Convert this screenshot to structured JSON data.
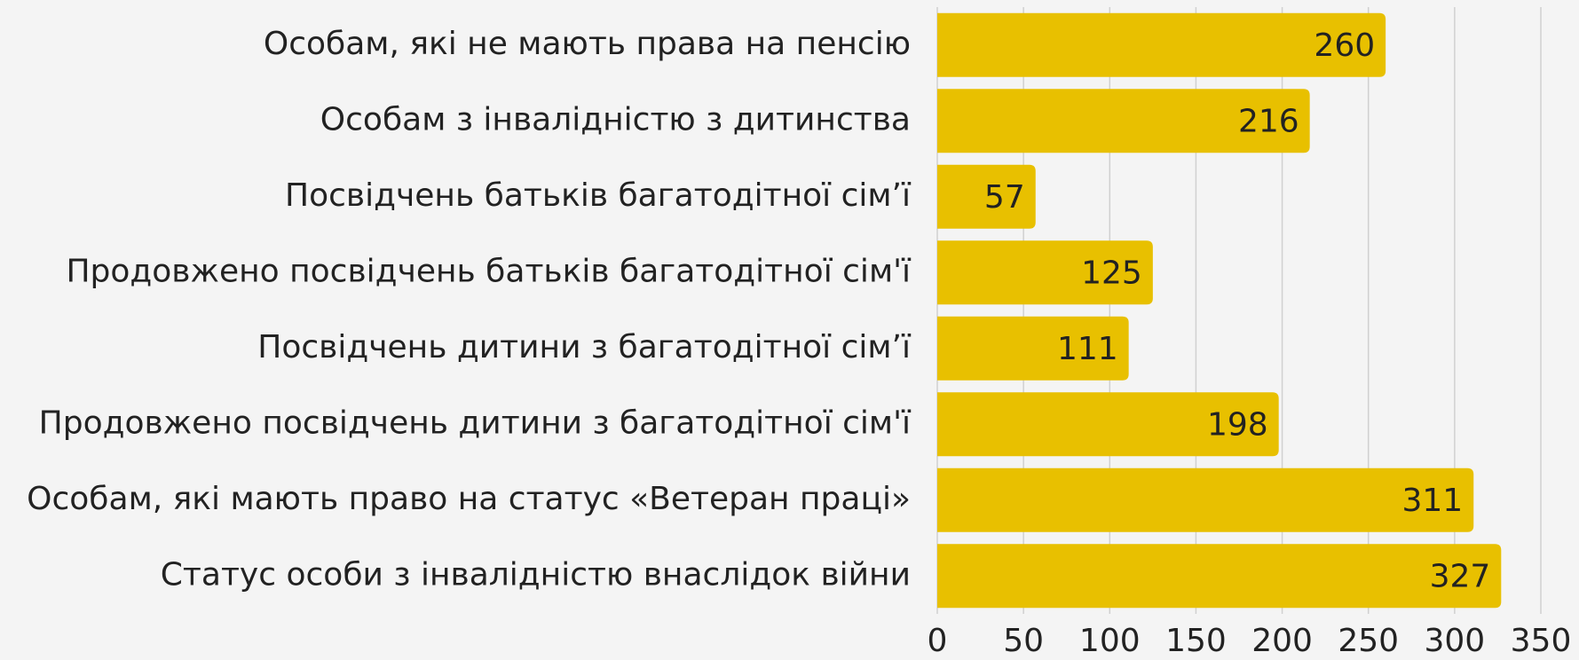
{
  "chart_data": {
    "type": "bar",
    "orientation": "horizontal",
    "categories": [
      "Особам, які не мають права на пенсію",
      "Особам з інвалідністю з дитинства",
      "Посвідчень батьків багатодітної сім’ї",
      "Продовжено посвідчень батьків багатодітної сім'ї",
      "Посвідчень дитини з багатодітної сім’ї",
      "Продовжено посвідчень дитини з багатодітної сім'ї",
      "Особам, які мають право на статус «Ветеран праці»",
      "Статус особи з інвалідністю внаслідок війни"
    ],
    "values": [
      260,
      216,
      57,
      125,
      111,
      198,
      311,
      327
    ],
    "color": "#e8c000",
    "xlim": [
      0,
      350
    ],
    "xticks": [
      0,
      50,
      100,
      150,
      200,
      250,
      300,
      350
    ],
    "grid": true
  }
}
